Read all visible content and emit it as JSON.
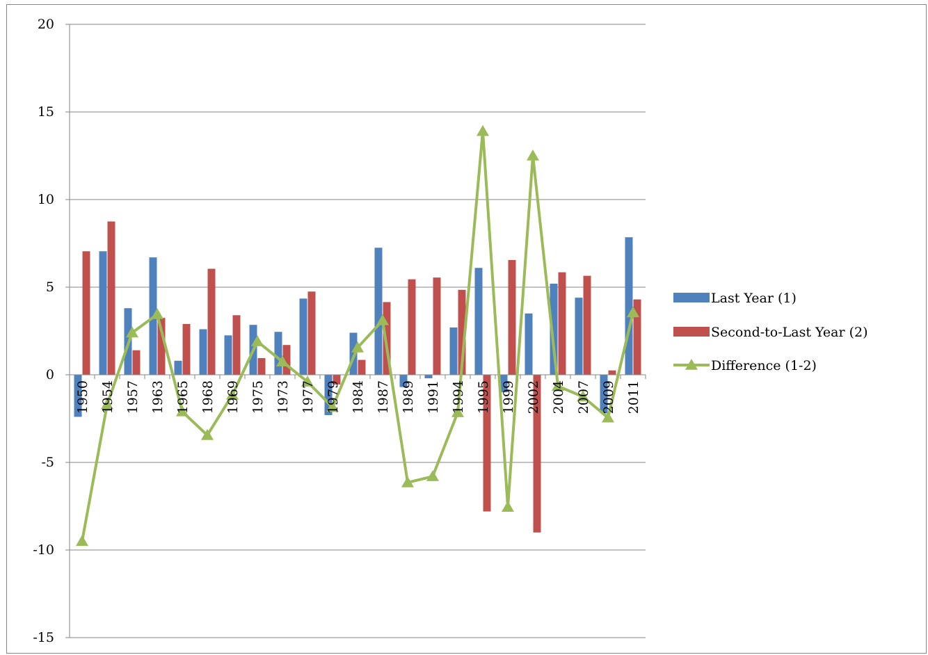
{
  "chart_data": {
    "type": "bar",
    "title": "",
    "xlabel": "",
    "ylabel": "",
    "ylim": [
      -15,
      20
    ],
    "yticks": [
      "20",
      "15",
      "10",
      "5",
      "0",
      "-5",
      "-10",
      "-15"
    ],
    "grid": true,
    "legend_position": "right",
    "categories": [
      "1950",
      "1954",
      "1957",
      "1963",
      "1965",
      "1968",
      "1969",
      "1975",
      "1973",
      "1977",
      "1979",
      "1984",
      "1987",
      "1989",
      "1991",
      "1994",
      "1995",
      "1999",
      "2002",
      "2004",
      "2007",
      "2009",
      "2011"
    ],
    "series": [
      {
        "name": "Last Year (1)",
        "kind": "bar",
        "color": "#4F81BD",
        "values": [
          -2.4,
          7.05,
          3.8,
          6.7,
          0.8,
          2.6,
          2.25,
          2.85,
          2.45,
          4.35,
          -2.3,
          2.4,
          7.25,
          -0.7,
          -0.2,
          2.7,
          6.1,
          -1.0,
          3.5,
          5.2,
          4.4,
          -2.2,
          7.85
        ]
      },
      {
        "name": "Second-to-Last Year (2)",
        "kind": "bar",
        "color": "#C0504D",
        "values": [
          7.05,
          8.75,
          1.4,
          3.25,
          2.9,
          6.05,
          3.4,
          0.95,
          1.7,
          4.75,
          -0.55,
          0.85,
          4.15,
          5.45,
          5.55,
          4.85,
          -7.8,
          6.55,
          -9.0,
          5.85,
          5.65,
          0.25,
          4.3
        ]
      },
      {
        "name": "Difference (1-2)",
        "kind": "line",
        "marker": "triangle",
        "color": "#9BBB59",
        "values": [
          -9.5,
          -1.7,
          2.4,
          3.45,
          -2.1,
          -3.45,
          -1.15,
          1.9,
          0.75,
          -0.4,
          -1.85,
          1.55,
          3.1,
          -6.15,
          -5.8,
          -2.15,
          13.9,
          -7.55,
          12.5,
          -0.65,
          -1.25,
          -2.45,
          3.55
        ]
      }
    ]
  }
}
